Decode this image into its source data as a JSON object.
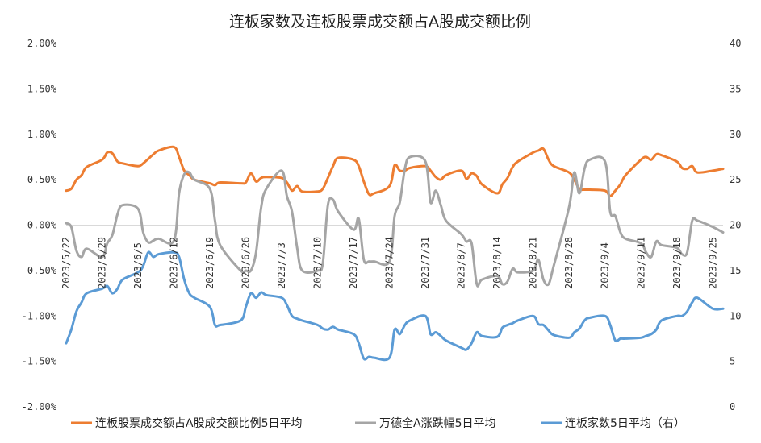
{
  "chart_data": {
    "type": "line",
    "title": "连板家数及连板股票成交额占A股成交额比例",
    "x_start": "2023/5/22",
    "x_end": "2023/9/27",
    "xtick_labels": [
      "2023/5/22",
      "2023/5/29",
      "2023/6/5",
      "2023/6/12",
      "2023/6/19",
      "2023/6/26",
      "2023/7/3",
      "2023/7/10",
      "2023/7/17",
      "2023/7/24",
      "2023/7/31",
      "2023/8/7",
      "2023/8/14",
      "2023/8/21",
      "2023/8/28",
      "2023/9/4",
      "2023/9/11",
      "2023/9/18",
      "2023/9/25"
    ],
    "y_left": {
      "min": -2.0,
      "max": 2.0,
      "ticks": [
        "2.00%",
        "1.50%",
        "1.00%",
        "0.50%",
        "0.00%",
        "-0.50%",
        "-1.00%",
        "-1.50%",
        "-2.00%"
      ]
    },
    "y_right": {
      "min": 0,
      "max": 40,
      "ticks": [
        "40",
        "35",
        "30",
        "25",
        "20",
        "15",
        "10",
        "5",
        "0"
      ]
    },
    "legend_position": "bottom",
    "grid": false,
    "series": [
      {
        "name": "连板股票成交额占A股成交额比例5日平均",
        "color": "#ED7D31",
        "axis": "left",
        "points": [
          [
            "2023/5/22",
            0.38
          ],
          [
            "2023/5/23",
            0.4
          ],
          [
            "2023/5/24",
            0.5
          ],
          [
            "2023/5/25",
            0.55
          ],
          [
            "2023/5/26",
            0.64
          ],
          [
            "2023/5/29",
            0.72
          ],
          [
            "2023/5/30",
            0.8
          ],
          [
            "2023/5/31",
            0.79
          ],
          [
            "2023/6/1",
            0.7
          ],
          [
            "2023/6/2",
            0.68
          ],
          [
            "2023/6/5",
            0.65
          ],
          [
            "2023/6/6",
            0.68
          ],
          [
            "2023/6/7",
            0.73
          ],
          [
            "2023/6/8",
            0.78
          ],
          [
            "2023/6/9",
            0.82
          ],
          [
            "2023/6/12",
            0.86
          ],
          [
            "2023/6/13",
            0.75
          ],
          [
            "2023/6/14",
            0.6
          ],
          [
            "2023/6/15",
            0.55
          ],
          [
            "2023/6/16",
            0.5
          ],
          [
            "2023/6/19",
            0.46
          ],
          [
            "2023/6/20",
            0.44
          ],
          [
            "2023/6/21",
            0.47
          ],
          [
            "2023/6/25",
            0.46
          ],
          [
            "2023/6/26",
            0.47
          ],
          [
            "2023/6/27",
            0.57
          ],
          [
            "2023/6/28",
            0.48
          ],
          [
            "2023/6/29",
            0.52
          ],
          [
            "2023/6/30",
            0.53
          ],
          [
            "2023/7/3",
            0.52
          ],
          [
            "2023/7/4",
            0.47
          ],
          [
            "2023/7/5",
            0.38
          ],
          [
            "2023/7/6",
            0.43
          ],
          [
            "2023/7/7",
            0.37
          ],
          [
            "2023/7/10",
            0.37
          ],
          [
            "2023/7/11",
            0.4
          ],
          [
            "2023/7/12",
            0.52
          ],
          [
            "2023/7/13",
            0.65
          ],
          [
            "2023/7/14",
            0.74
          ],
          [
            "2023/7/17",
            0.72
          ],
          [
            "2023/7/18",
            0.65
          ],
          [
            "2023/7/19",
            0.48
          ],
          [
            "2023/7/20",
            0.34
          ],
          [
            "2023/7/21",
            0.35
          ],
          [
            "2023/7/24",
            0.43
          ],
          [
            "2023/7/25",
            0.66
          ],
          [
            "2023/7/26",
            0.6
          ],
          [
            "2023/7/27",
            0.6
          ],
          [
            "2023/7/28",
            0.63
          ],
          [
            "2023/7/31",
            0.65
          ],
          [
            "2023/8/1",
            0.6
          ],
          [
            "2023/8/2",
            0.53
          ],
          [
            "2023/8/3",
            0.5
          ],
          [
            "2023/8/4",
            0.55
          ],
          [
            "2023/8/7",
            0.6
          ],
          [
            "2023/8/8",
            0.51
          ],
          [
            "2023/8/9",
            0.57
          ],
          [
            "2023/8/10",
            0.54
          ],
          [
            "2023/8/11",
            0.45
          ],
          [
            "2023/8/14",
            0.35
          ],
          [
            "2023/8/15",
            0.45
          ],
          [
            "2023/8/16",
            0.52
          ],
          [
            "2023/8/17",
            0.64
          ],
          [
            "2023/8/18",
            0.7
          ],
          [
            "2023/8/21",
            0.8
          ],
          [
            "2023/8/22",
            0.82
          ],
          [
            "2023/8/23",
            0.84
          ],
          [
            "2023/8/24",
            0.72
          ],
          [
            "2023/8/25",
            0.65
          ],
          [
            "2023/8/28",
            0.58
          ],
          [
            "2023/8/29",
            0.5
          ],
          [
            "2023/8/30",
            0.4
          ],
          [
            "2023/8/31",
            0.39
          ],
          [
            "2023/9/1",
            0.39
          ],
          [
            "2023/9/4",
            0.38
          ],
          [
            "2023/9/5",
            0.32
          ],
          [
            "2023/9/6",
            0.38
          ],
          [
            "2023/9/7",
            0.45
          ],
          [
            "2023/9/8",
            0.55
          ],
          [
            "2023/9/11",
            0.72
          ],
          [
            "2023/9/12",
            0.75
          ],
          [
            "2023/9/13",
            0.72
          ],
          [
            "2023/9/14",
            0.78
          ],
          [
            "2023/9/15",
            0.77
          ],
          [
            "2023/9/18",
            0.7
          ],
          [
            "2023/9/19",
            0.63
          ],
          [
            "2023/9/20",
            0.62
          ],
          [
            "2023/9/21",
            0.65
          ],
          [
            "2023/9/22",
            0.58
          ],
          [
            "2023/9/25",
            0.6
          ],
          [
            "2023/9/27",
            0.62
          ]
        ]
      },
      {
        "name": "万德全A涨跌幅5日平均",
        "color": "#A5A5A5",
        "axis": "left",
        "points": [
          [
            "2023/5/22",
            0.02
          ],
          [
            "2023/5/23",
            -0.02
          ],
          [
            "2023/5/24",
            -0.28
          ],
          [
            "2023/5/25",
            -0.35
          ],
          [
            "2023/5/26",
            -0.26
          ],
          [
            "2023/5/29",
            -0.35
          ],
          [
            "2023/5/30",
            -0.2
          ],
          [
            "2023/5/31",
            -0.11
          ],
          [
            "2023/6/1",
            0.12
          ],
          [
            "2023/6/2",
            0.22
          ],
          [
            "2023/6/5",
            0.18
          ],
          [
            "2023/6/6",
            -0.08
          ],
          [
            "2023/6/7",
            -0.19
          ],
          [
            "2023/6/8",
            -0.17
          ],
          [
            "2023/6/9",
            -0.15
          ],
          [
            "2023/6/12",
            -0.17
          ],
          [
            "2023/6/13",
            0.35
          ],
          [
            "2023/6/14",
            0.56
          ],
          [
            "2023/6/15",
            0.58
          ],
          [
            "2023/6/16",
            0.5
          ],
          [
            "2023/6/19",
            0.4
          ],
          [
            "2023/6/20",
            0.05
          ],
          [
            "2023/6/21",
            -0.22
          ],
          [
            "2023/6/25",
            -0.5
          ],
          [
            "2023/6/26",
            -0.5
          ],
          [
            "2023/6/27",
            -0.5
          ],
          [
            "2023/6/28",
            -0.3
          ],
          [
            "2023/6/29",
            0.2
          ],
          [
            "2023/6/30",
            0.4
          ],
          [
            "2023/7/3",
            0.6
          ],
          [
            "2023/7/4",
            0.32
          ],
          [
            "2023/7/5",
            0.15
          ],
          [
            "2023/7/6",
            -0.25
          ],
          [
            "2023/7/7",
            -0.5
          ],
          [
            "2023/7/10",
            -0.5
          ],
          [
            "2023/7/11",
            -0.42
          ],
          [
            "2023/7/12",
            0.22
          ],
          [
            "2023/7/13",
            0.28
          ],
          [
            "2023/7/14",
            0.15
          ],
          [
            "2023/7/17",
            -0.05
          ],
          [
            "2023/7/18",
            0.07
          ],
          [
            "2023/7/19",
            -0.38
          ],
          [
            "2023/7/20",
            -0.4
          ],
          [
            "2023/7/21",
            -0.4
          ],
          [
            "2023/7/24",
            -0.4
          ],
          [
            "2023/7/25",
            0.1
          ],
          [
            "2023/7/26",
            0.25
          ],
          [
            "2023/7/27",
            0.62
          ],
          [
            "2023/7/28",
            0.75
          ],
          [
            "2023/7/31",
            0.7
          ],
          [
            "2023/8/1",
            0.25
          ],
          [
            "2023/8/2",
            0.38
          ],
          [
            "2023/8/3",
            0.22
          ],
          [
            "2023/8/4",
            0.05
          ],
          [
            "2023/8/7",
            -0.1
          ],
          [
            "2023/8/8",
            -0.18
          ],
          [
            "2023/8/9",
            -0.2
          ],
          [
            "2023/8/10",
            -0.65
          ],
          [
            "2023/8/11",
            -0.6
          ],
          [
            "2023/8/14",
            -0.56
          ],
          [
            "2023/8/15",
            -0.65
          ],
          [
            "2023/8/16",
            -0.62
          ],
          [
            "2023/8/17",
            -0.48
          ],
          [
            "2023/8/18",
            -0.52
          ],
          [
            "2023/8/21",
            -0.5
          ],
          [
            "2023/8/22",
            -0.38
          ],
          [
            "2023/8/23",
            -0.6
          ],
          [
            "2023/8/24",
            -0.65
          ],
          [
            "2023/8/25",
            -0.45
          ],
          [
            "2023/8/28",
            0.2
          ],
          [
            "2023/8/29",
            0.58
          ],
          [
            "2023/8/30",
            0.35
          ],
          [
            "2023/8/31",
            0.62
          ],
          [
            "2023/9/1",
            0.72
          ],
          [
            "2023/9/4",
            0.7
          ],
          [
            "2023/9/5",
            0.15
          ],
          [
            "2023/9/6",
            0.1
          ],
          [
            "2023/9/7",
            -0.08
          ],
          [
            "2023/9/8",
            -0.15
          ],
          [
            "2023/9/11",
            -0.2
          ],
          [
            "2023/9/12",
            -0.3
          ],
          [
            "2023/9/13",
            -0.35
          ],
          [
            "2023/9/14",
            -0.18
          ],
          [
            "2023/9/15",
            -0.22
          ],
          [
            "2023/9/18",
            -0.25
          ],
          [
            "2023/9/19",
            -0.32
          ],
          [
            "2023/9/20",
            -0.3
          ],
          [
            "2023/9/21",
            0.05
          ],
          [
            "2023/9/22",
            0.05
          ],
          [
            "2023/9/25",
            -0.02
          ],
          [
            "2023/9/27",
            -0.08
          ]
        ]
      },
      {
        "name": "连板家数5日平均（右）",
        "color": "#5B9BD5",
        "axis": "right",
        "points": [
          [
            "2023/5/22",
            7.0
          ],
          [
            "2023/5/23",
            8.5
          ],
          [
            "2023/5/24",
            10.5
          ],
          [
            "2023/5/25",
            11.5
          ],
          [
            "2023/5/26",
            12.5
          ],
          [
            "2023/5/29",
            13.0
          ],
          [
            "2023/5/30",
            13.3
          ],
          [
            "2023/5/31",
            12.5
          ],
          [
            "2023/6/1",
            13.0
          ],
          [
            "2023/6/2",
            14.0
          ],
          [
            "2023/6/5",
            14.8
          ],
          [
            "2023/6/6",
            15.5
          ],
          [
            "2023/6/7",
            17.0
          ],
          [
            "2023/6/8",
            16.5
          ],
          [
            "2023/6/9",
            16.8
          ],
          [
            "2023/6/12",
            17.0
          ],
          [
            "2023/6/13",
            16.5
          ],
          [
            "2023/6/14",
            14.0
          ],
          [
            "2023/6/15",
            12.5
          ],
          [
            "2023/6/16",
            12.0
          ],
          [
            "2023/6/19",
            11.0
          ],
          [
            "2023/6/20",
            9.0
          ],
          [
            "2023/6/21",
            9.0
          ],
          [
            "2023/6/25",
            9.5
          ],
          [
            "2023/6/26",
            11.0
          ],
          [
            "2023/6/27",
            12.5
          ],
          [
            "2023/6/28",
            12.0
          ],
          [
            "2023/6/29",
            12.6
          ],
          [
            "2023/6/30",
            12.3
          ],
          [
            "2023/7/3",
            12.0
          ],
          [
            "2023/7/4",
            11.2
          ],
          [
            "2023/7/5",
            10.0
          ],
          [
            "2023/7/6",
            9.7
          ],
          [
            "2023/7/7",
            9.5
          ],
          [
            "2023/7/10",
            9.0
          ],
          [
            "2023/7/11",
            8.6
          ],
          [
            "2023/7/12",
            8.5
          ],
          [
            "2023/7/13",
            8.8
          ],
          [
            "2023/7/14",
            8.5
          ],
          [
            "2023/7/17",
            8.0
          ],
          [
            "2023/7/18",
            7.0
          ],
          [
            "2023/7/19",
            5.3
          ],
          [
            "2023/7/20",
            5.5
          ],
          [
            "2023/7/21",
            5.4
          ],
          [
            "2023/7/24",
            5.4
          ],
          [
            "2023/7/25",
            8.5
          ],
          [
            "2023/7/26",
            8.0
          ],
          [
            "2023/7/27",
            9.0
          ],
          [
            "2023/7/28",
            9.5
          ],
          [
            "2023/7/31",
            10.0
          ],
          [
            "2023/8/1",
            8.0
          ],
          [
            "2023/8/2",
            8.2
          ],
          [
            "2023/8/3",
            7.8
          ],
          [
            "2023/8/4",
            7.3
          ],
          [
            "2023/8/7",
            6.5
          ],
          [
            "2023/8/8",
            6.3
          ],
          [
            "2023/8/9",
            7.0
          ],
          [
            "2023/8/10",
            8.2
          ],
          [
            "2023/8/11",
            7.8
          ],
          [
            "2023/8/14",
            7.7
          ],
          [
            "2023/8/15",
            8.7
          ],
          [
            "2023/8/16",
            9.0
          ],
          [
            "2023/8/17",
            9.2
          ],
          [
            "2023/8/18",
            9.5
          ],
          [
            "2023/8/21",
            10.0
          ],
          [
            "2023/8/22",
            9.1
          ],
          [
            "2023/8/23",
            9.0
          ],
          [
            "2023/8/24",
            8.4
          ],
          [
            "2023/8/25",
            7.9
          ],
          [
            "2023/8/28",
            7.6
          ],
          [
            "2023/8/29",
            8.2
          ],
          [
            "2023/8/30",
            8.6
          ],
          [
            "2023/8/31",
            9.5
          ],
          [
            "2023/9/1",
            9.8
          ],
          [
            "2023/9/4",
            10.0
          ],
          [
            "2023/9/5",
            9.0
          ],
          [
            "2023/9/6",
            7.3
          ],
          [
            "2023/9/7",
            7.5
          ],
          [
            "2023/9/8",
            7.5
          ],
          [
            "2023/9/11",
            7.6
          ],
          [
            "2023/9/12",
            7.8
          ],
          [
            "2023/9/13",
            8.0
          ],
          [
            "2023/9/14",
            8.5
          ],
          [
            "2023/9/15",
            9.5
          ],
          [
            "2023/9/18",
            10.0
          ],
          [
            "2023/9/19",
            10.0
          ],
          [
            "2023/9/20",
            10.5
          ],
          [
            "2023/9/21",
            11.5
          ],
          [
            "2023/9/22",
            12.0
          ],
          [
            "2023/9/25",
            10.8
          ],
          [
            "2023/9/27",
            10.8
          ]
        ]
      }
    ]
  }
}
